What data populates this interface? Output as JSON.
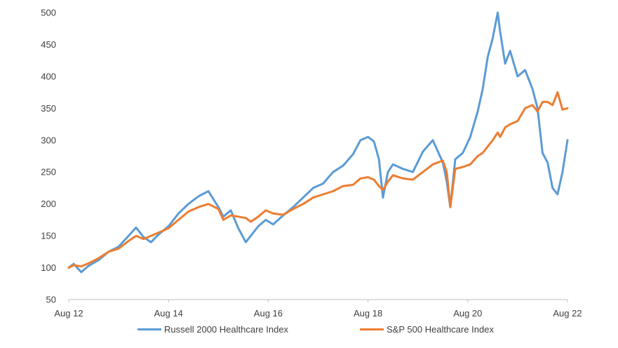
{
  "chart_data": {
    "type": "line",
    "xlabel": "",
    "ylabel": "",
    "ylim": [
      50,
      500
    ],
    "y_ticks": [
      50,
      100,
      150,
      200,
      250,
      300,
      350,
      400,
      450,
      500
    ],
    "x_range": [
      2012.5,
      2022.5
    ],
    "x_ticks": [
      {
        "value": 2012.5,
        "label": "Aug 12"
      },
      {
        "value": 2014.5,
        "label": "Aug 14"
      },
      {
        "value": 2016.5,
        "label": "Aug 16"
      },
      {
        "value": 2018.5,
        "label": "Aug 18"
      },
      {
        "value": 2020.5,
        "label": "Aug 20"
      },
      {
        "value": 2022.5,
        "label": "Aug 22"
      }
    ],
    "grid": false,
    "legend_position": "bottom",
    "series": [
      {
        "name": "Russell 2000 Healthcare Index",
        "color": "#5b9bd5",
        "x": [
          2012.5,
          2012.6,
          2012.75,
          2012.9,
          2013.1,
          2013.3,
          2013.5,
          2013.7,
          2013.85,
          2014.0,
          2014.15,
          2014.3,
          2014.5,
          2014.7,
          2014.9,
          2015.1,
          2015.3,
          2015.5,
          2015.6,
          2015.75,
          2015.9,
          2016.05,
          2016.15,
          2016.3,
          2016.45,
          2016.6,
          2016.8,
          2017.0,
          2017.2,
          2017.4,
          2017.6,
          2017.8,
          2018.0,
          2018.2,
          2018.35,
          2018.5,
          2018.62,
          2018.72,
          2018.8,
          2018.9,
          2019.0,
          2019.2,
          2019.4,
          2019.6,
          2019.8,
          2020.0,
          2020.08,
          2020.15,
          2020.25,
          2020.4,
          2020.55,
          2020.7,
          2020.8,
          2020.9,
          2021.0,
          2021.1,
          2021.15,
          2021.25,
          2021.35,
          2021.5,
          2021.65,
          2021.8,
          2021.9,
          2022.0,
          2022.1,
          2022.2,
          2022.3,
          2022.4,
          2022.5
        ],
        "values": [
          100,
          106,
          93,
          103,
          112,
          125,
          133,
          150,
          163,
          148,
          140,
          152,
          165,
          185,
          200,
          212,
          220,
          195,
          180,
          190,
          162,
          140,
          150,
          165,
          175,
          168,
          182,
          195,
          210,
          225,
          232,
          250,
          260,
          278,
          300,
          305,
          298,
          270,
          210,
          250,
          262,
          255,
          250,
          282,
          300,
          265,
          235,
          195,
          270,
          280,
          305,
          345,
          380,
          430,
          460,
          500,
          470,
          420,
          440,
          400,
          410,
          380,
          350,
          280,
          265,
          225,
          215,
          250,
          300
        ]
      },
      {
        "name": "S&P 500 Healthcare Index",
        "color": "#ed7d31",
        "x": [
          2012.5,
          2012.6,
          2012.75,
          2012.9,
          2013.1,
          2013.3,
          2013.5,
          2013.7,
          2013.85,
          2014.0,
          2014.15,
          2014.3,
          2014.5,
          2014.7,
          2014.9,
          2015.1,
          2015.3,
          2015.5,
          2015.6,
          2015.75,
          2015.9,
          2016.05,
          2016.15,
          2016.3,
          2016.45,
          2016.6,
          2016.8,
          2017.0,
          2017.2,
          2017.4,
          2017.6,
          2017.8,
          2018.0,
          2018.2,
          2018.35,
          2018.5,
          2018.62,
          2018.72,
          2018.8,
          2018.9,
          2019.0,
          2019.2,
          2019.4,
          2019.6,
          2019.8,
          2020.0,
          2020.08,
          2020.15,
          2020.25,
          2020.4,
          2020.55,
          2020.7,
          2020.8,
          2020.9,
          2021.0,
          2021.1,
          2021.15,
          2021.25,
          2021.35,
          2021.5,
          2021.65,
          2021.8,
          2021.9,
          2022.0,
          2022.1,
          2022.2,
          2022.3,
          2022.4,
          2022.5
        ],
        "values": [
          100,
          104,
          102,
          107,
          115,
          125,
          130,
          142,
          150,
          145,
          150,
          155,
          162,
          175,
          188,
          195,
          200,
          192,
          175,
          182,
          180,
          178,
          172,
          180,
          190,
          185,
          183,
          192,
          200,
          210,
          215,
          220,
          228,
          230,
          240,
          242,
          238,
          228,
          222,
          235,
          245,
          240,
          238,
          250,
          262,
          268,
          250,
          195,
          255,
          258,
          262,
          275,
          280,
          290,
          300,
          312,
          305,
          320,
          325,
          330,
          350,
          355,
          345,
          360,
          360,
          355,
          375,
          348,
          350
        ]
      }
    ]
  }
}
